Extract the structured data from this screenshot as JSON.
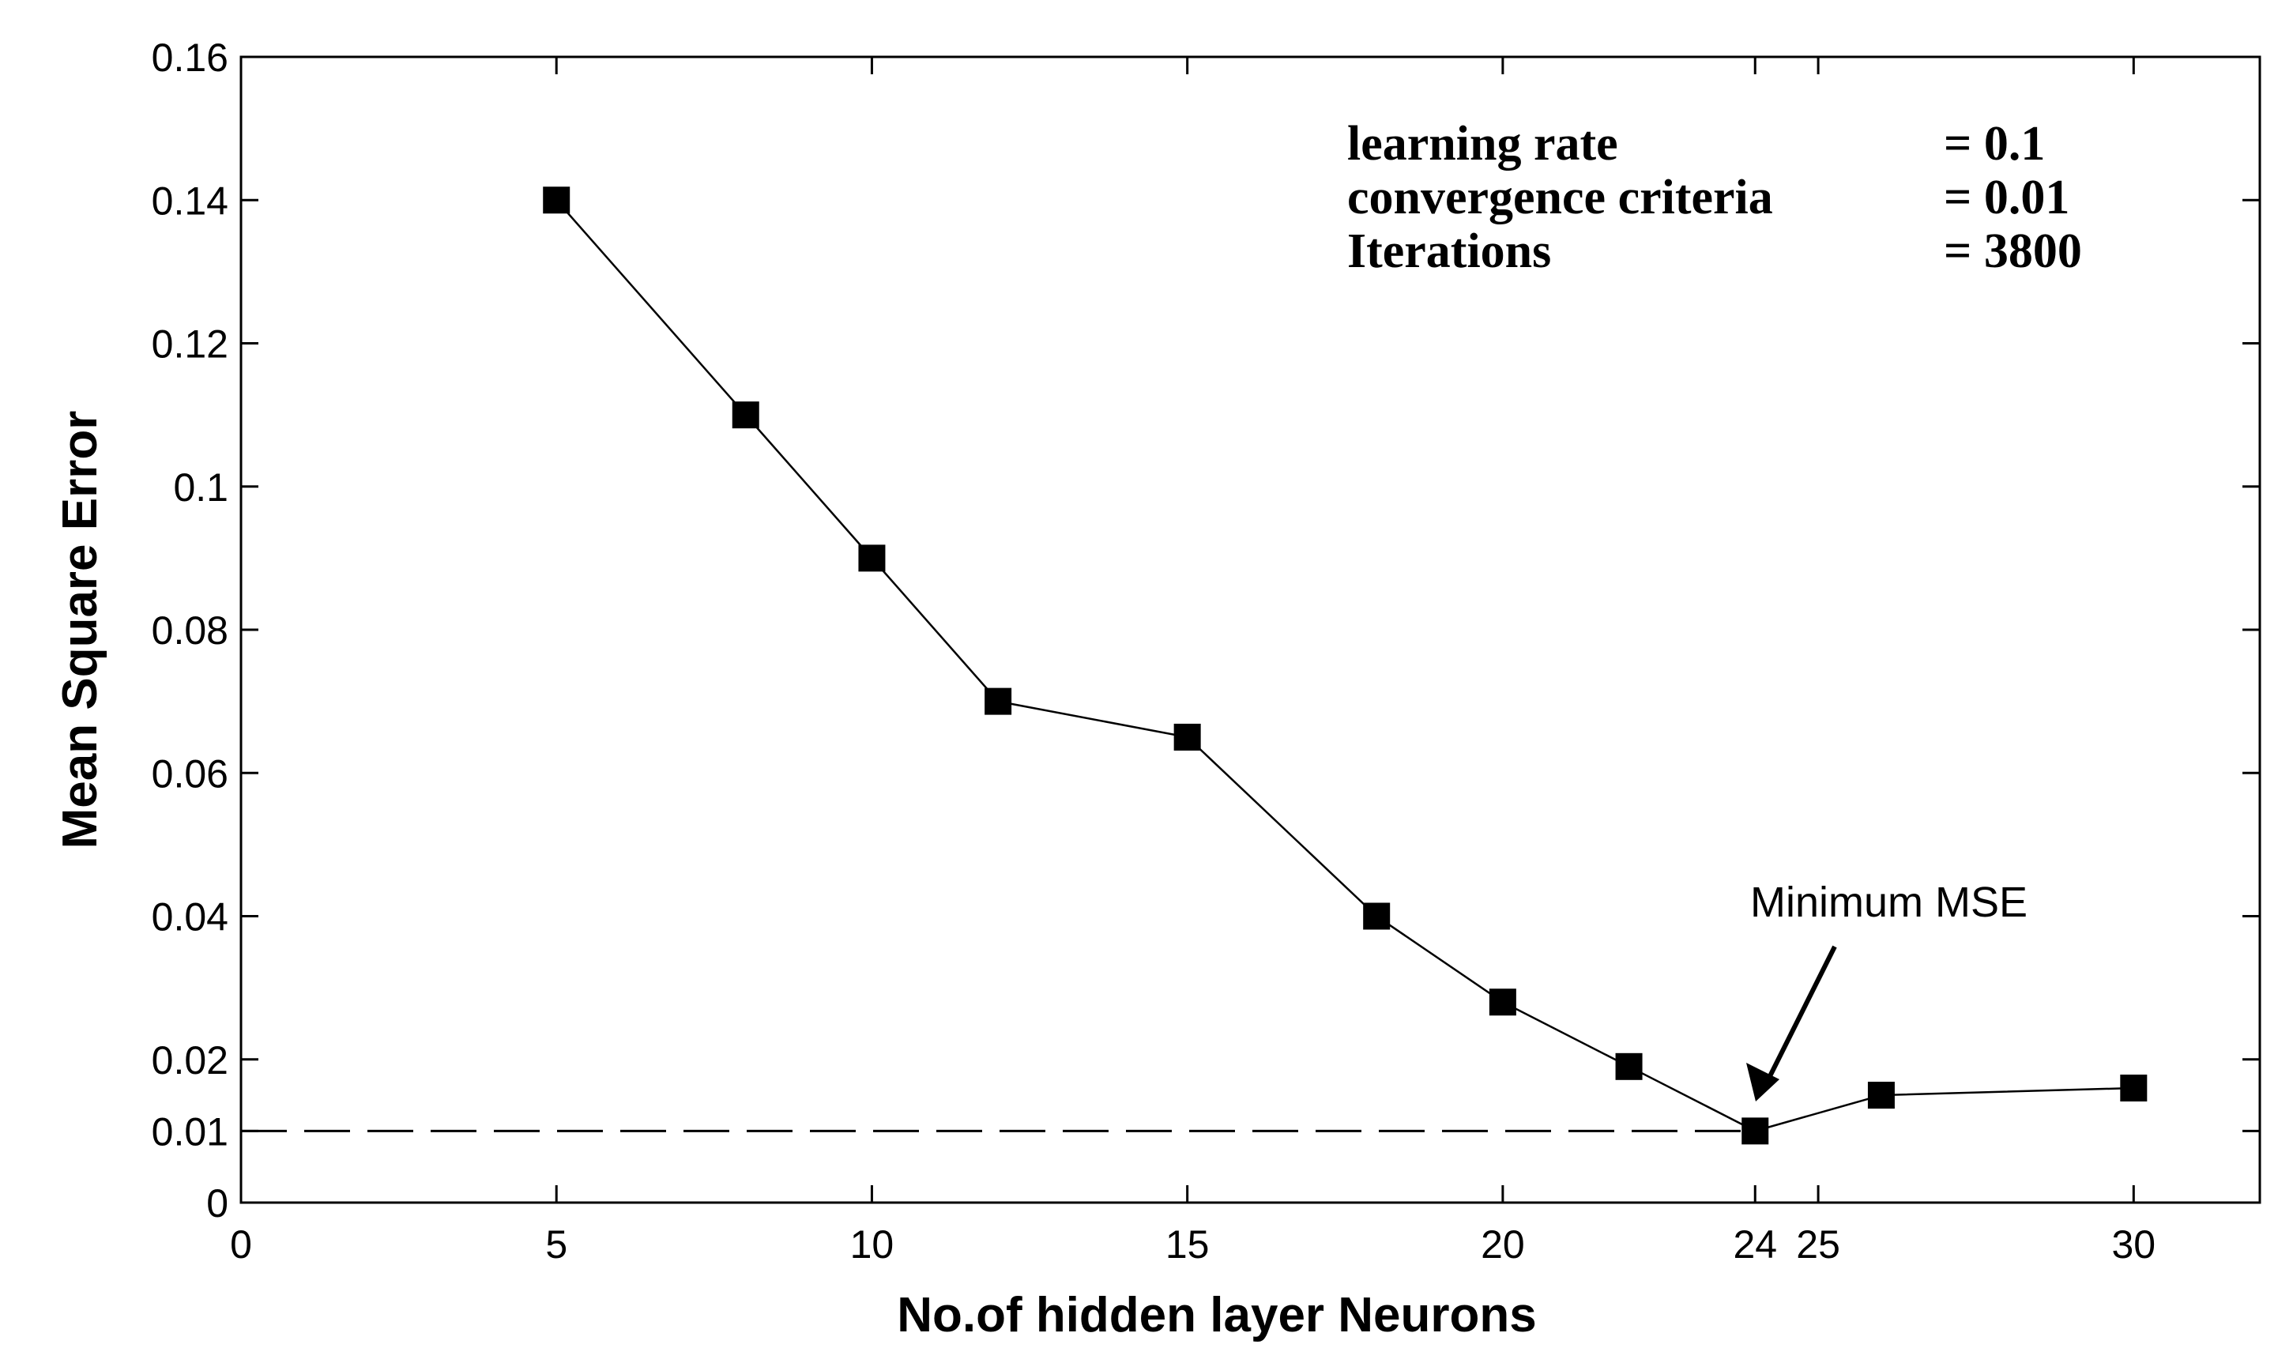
{
  "chart_data": {
    "type": "line",
    "title": "",
    "xlabel": "No.of hidden layer Neurons",
    "ylabel": "Mean Square Error",
    "xlim": [
      0,
      32
    ],
    "ylim": [
      0,
      0.16
    ],
    "xticks": [
      0,
      5,
      10,
      15,
      20,
      24,
      25,
      30
    ],
    "xtick_labels": [
      "0",
      "5",
      "10",
      "15",
      "20",
      "24",
      "25",
      "30"
    ],
    "yticks": [
      0,
      0.01,
      0.02,
      0.04,
      0.06,
      0.08,
      0.1,
      0.12,
      0.14,
      0.16
    ],
    "ytick_labels": [
      "0",
      "0.01",
      "0.02",
      "0.04",
      "0.06",
      "0.08",
      "0.1",
      "0.12",
      "0.14",
      "0.16"
    ],
    "grid": false,
    "series": [
      {
        "name": "MSE",
        "marker": "square",
        "x": [
          5,
          8,
          10,
          12,
          15,
          18,
          20,
          22,
          24,
          26,
          30
        ],
        "y": [
          0.14,
          0.11,
          0.09,
          0.07,
          0.065,
          0.04,
          0.028,
          0.019,
          0.01,
          0.015,
          0.016
        ]
      }
    ],
    "reference_line": {
      "y": 0.01,
      "x_from": 0,
      "x_to": 24,
      "style": "dashed"
    },
    "parameters": [
      {
        "label": "learning rate",
        "value": "= 0.1"
      },
      {
        "label": "convergence criteria",
        "value": "= 0.01"
      },
      {
        "label": "Iterations",
        "value": "= 3800"
      }
    ],
    "callout": {
      "text": "Minimum MSE",
      "target_x": 24,
      "target_y": 0.01
    }
  }
}
